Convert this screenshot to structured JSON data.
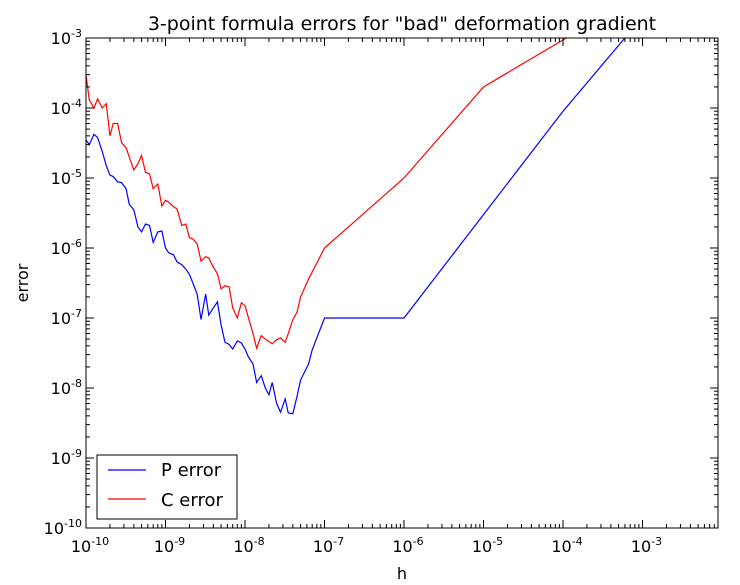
{
  "chart_data": {
    "type": "line",
    "title": "3-point formula errors for \"bad\" deformation gradient",
    "xlabel": "h",
    "ylabel": "error",
    "xscale": "log",
    "yscale": "log",
    "xlim": [
      1e-10,
      0.0089
    ],
    "ylim": [
      1e-10,
      0.001
    ],
    "grid": false,
    "legend": "lower-left",
    "x_ticks": [
      {
        "base": "10",
        "exp": "-10",
        "value": 1e-10
      },
      {
        "base": "10",
        "exp": "-9",
        "value": 1e-09
      },
      {
        "base": "10",
        "exp": "-8",
        "value": 1e-08
      },
      {
        "base": "10",
        "exp": "-7",
        "value": 1e-07
      },
      {
        "base": "10",
        "exp": "-6",
        "value": 1e-06
      },
      {
        "base": "10",
        "exp": "-5",
        "value": 1e-05
      },
      {
        "base": "10",
        "exp": "-4",
        "value": 0.0001
      },
      {
        "base": "10",
        "exp": "-3",
        "value": 0.001
      }
    ],
    "y_ticks": [
      {
        "base": "10",
        "exp": "-10",
        "value": 1e-10
      },
      {
        "base": "10",
        "exp": "-9",
        "value": 1e-09
      },
      {
        "base": "10",
        "exp": "-8",
        "value": 1e-08
      },
      {
        "base": "10",
        "exp": "-7",
        "value": 1e-07
      },
      {
        "base": "10",
        "exp": "-6",
        "value": 1e-06
      },
      {
        "base": "10",
        "exp": "-5",
        "value": 1e-05
      },
      {
        "base": "10",
        "exp": "-4",
        "value": 0.0001
      },
      {
        "base": "10",
        "exp": "-3",
        "value": 0.001
      }
    ],
    "series": [
      {
        "name": "P error",
        "color": "#0000ff",
        "points": [
          [
            1e-10,
            3.5e-05
          ],
          [
            1.1e-10,
            3e-05
          ],
          [
            1.26e-10,
            4.2e-05
          ],
          [
            1.4e-10,
            3.8e-05
          ],
          [
            1.6e-10,
            2.4e-05
          ],
          [
            1.8e-10,
            1.5e-05
          ],
          [
            2e-10,
            1.1e-05
          ],
          [
            2.2e-10,
            1.05e-05
          ],
          [
            2.5e-10,
            8.8e-06
          ],
          [
            2.8e-10,
            8.6e-06
          ],
          [
            3.2e-10,
            7e-06
          ],
          [
            3.5e-10,
            4.2e-06
          ],
          [
            4e-10,
            3.5e-06
          ],
          [
            4.5e-10,
            2e-06
          ],
          [
            5e-10,
            1.7e-06
          ],
          [
            5.6e-10,
            2.2e-06
          ],
          [
            6.3e-10,
            2.1e-06
          ],
          [
            7e-10,
            1.2e-06
          ],
          [
            8e-10,
            1.7e-06
          ],
          [
            9e-10,
            1.75e-06
          ],
          [
            1e-09,
            1e-06
          ],
          [
            1.1e-09,
            8.5e-07
          ],
          [
            1.26e-09,
            8e-07
          ],
          [
            1.4e-09,
            6.3e-07
          ],
          [
            1.6e-09,
            5.8e-07
          ],
          [
            1.8e-09,
            5e-07
          ],
          [
            2e-09,
            4.2e-07
          ],
          [
            2.2e-09,
            3.2e-07
          ],
          [
            2.5e-09,
            2.2e-07
          ],
          [
            2.8e-09,
            9.5e-08
          ],
          [
            3.2e-09,
            2.2e-07
          ],
          [
            3.5e-09,
            1.1e-07
          ],
          [
            4e-09,
            1.4e-07
          ],
          [
            4.5e-09,
            1.7e-07
          ],
          [
            5e-09,
            8e-08
          ],
          [
            5.6e-09,
            4.5e-08
          ],
          [
            6.3e-09,
            4.2e-08
          ],
          [
            7e-09,
            3.6e-08
          ],
          [
            8e-09,
            4.7e-08
          ],
          [
            9e-09,
            4.4e-08
          ],
          [
            1e-08,
            3.6e-08
          ],
          [
            1.1e-08,
            2.8e-08
          ],
          [
            1.26e-08,
            2.2e-08
          ],
          [
            1.4e-08,
            1.2e-08
          ],
          [
            1.6e-08,
            1.5e-08
          ],
          [
            1.8e-08,
            1e-08
          ],
          [
            2e-08,
            8e-09
          ],
          [
            2.2e-08,
            1.2e-08
          ],
          [
            2.5e-08,
            6e-09
          ],
          [
            2.8e-08,
            4.5e-09
          ],
          [
            3.2e-08,
            7e-09
          ],
          [
            3.5e-08,
            4.4e-09
          ],
          [
            4e-08,
            4.3e-09
          ],
          [
            4.5e-08,
            7.5e-09
          ],
          [
            5e-08,
            1.3e-08
          ],
          [
            6.3e-08,
            2.2e-08
          ],
          [
            7e-08,
            3.5e-08
          ],
          [
            1e-07,
            1e-07
          ],
          [
            1e-05,
            3e-06
          ],
          [
            1e-06,
            1e-07
          ],
          [
            1e-05,
            3e-06
          ],
          [
            0.0001,
            9e-05
          ],
          [
            0.0006,
            0.001
          ]
        ]
      },
      {
        "name": "C error",
        "color": "#ff0000",
        "points": [
          [
            1e-10,
            0.0003
          ],
          [
            1.1e-10,
            0.00013
          ],
          [
            1.26e-10,
            0.0001
          ],
          [
            1.4e-10,
            0.000135
          ],
          [
            1.6e-10,
            0.0001
          ],
          [
            1.8e-10,
            0.000115
          ],
          [
            2e-10,
            4e-05
          ],
          [
            2.2e-10,
            6e-05
          ],
          [
            2.5e-10,
            6e-05
          ],
          [
            2.8e-10,
            3.2e-05
          ],
          [
            3.2e-10,
            2.7e-05
          ],
          [
            3.5e-10,
            2e-05
          ],
          [
            4e-10,
            1.3e-05
          ],
          [
            4.5e-10,
            1.6e-05
          ],
          [
            5e-10,
            2.1e-05
          ],
          [
            5.6e-10,
            1.2e-05
          ],
          [
            6.3e-10,
            1.15e-05
          ],
          [
            7e-10,
            7e-06
          ],
          [
            8e-10,
            8.2e-06
          ],
          [
            9e-10,
            4e-06
          ],
          [
            1e-09,
            4.8e-06
          ],
          [
            1.1e-09,
            4.5e-06
          ],
          [
            1.26e-09,
            3.9e-06
          ],
          [
            1.4e-09,
            3.6e-06
          ],
          [
            1.6e-09,
            2.1e-06
          ],
          [
            1.8e-09,
            2.2e-06
          ],
          [
            2e-09,
            1.4e-06
          ],
          [
            2.2e-09,
            1.35e-06
          ],
          [
            2.5e-09,
            1.15e-06
          ],
          [
            2.8e-09,
            6.5e-07
          ],
          [
            3.2e-09,
            7.5e-07
          ],
          [
            3.5e-09,
            7.2e-07
          ],
          [
            4e-09,
            5.3e-07
          ],
          [
            4.5e-09,
            4.3e-07
          ],
          [
            5e-09,
            2.6e-07
          ],
          [
            5.6e-09,
            2.9e-07
          ],
          [
            6.3e-09,
            2.8e-07
          ],
          [
            7e-09,
            1.4e-07
          ],
          [
            8e-09,
            1e-07
          ],
          [
            9e-09,
            1.65e-07
          ],
          [
            1e-08,
            1.5e-07
          ],
          [
            1.26e-08,
            6e-08
          ],
          [
            1.4e-08,
            3.7e-08
          ],
          [
            1.6e-08,
            5.6e-08
          ],
          [
            1.8e-08,
            5e-08
          ],
          [
            2e-08,
            4.6e-08
          ],
          [
            2.2e-08,
            4.3e-08
          ],
          [
            2.5e-08,
            4.9e-08
          ],
          [
            2.8e-08,
            5.2e-08
          ],
          [
            3.2e-08,
            4.5e-08
          ],
          [
            3.5e-08,
            6e-08
          ],
          [
            4e-08,
            9.5e-08
          ],
          [
            4.5e-08,
            1.2e-07
          ],
          [
            5e-08,
            2e-07
          ],
          [
            6.3e-08,
            3.6e-07
          ],
          [
            1e-07,
            1e-06
          ],
          [
            1e-06,
            1e-05
          ],
          [
            1e-05,
            0.0002
          ],
          [
            0.00011,
            0.001
          ]
        ]
      }
    ]
  }
}
